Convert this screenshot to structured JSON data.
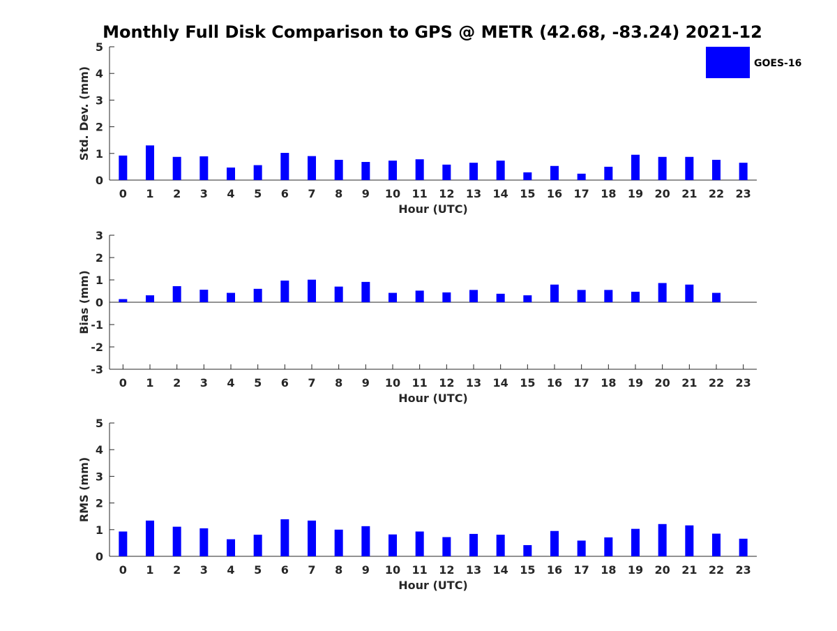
{
  "figure": {
    "title": "Monthly Full Disk Comparison to GPS @ METR (42.68, -83.24) 2021-12",
    "bar_color": "#0000ff",
    "legend": {
      "label": "GOES-16",
      "color": "#0000ff",
      "placement": "top-right"
    }
  },
  "chart_data": [
    {
      "type": "bar",
      "xlabel": "Hour (UTC)",
      "ylabel": "Std. Dev. (mm)",
      "ylim": [
        0,
        5
      ],
      "yticks": [
        0,
        1,
        2,
        3,
        4,
        5
      ],
      "categories": [
        "0",
        "1",
        "2",
        "3",
        "4",
        "5",
        "6",
        "7",
        "8",
        "9",
        "10",
        "11",
        "12",
        "13",
        "14",
        "15",
        "16",
        "17",
        "18",
        "19",
        "20",
        "21",
        "22",
        "23"
      ],
      "series": [
        {
          "name": "GOES-16",
          "values": [
            0.92,
            1.3,
            0.87,
            0.89,
            0.47,
            0.56,
            1.02,
            0.9,
            0.76,
            0.68,
            0.73,
            0.78,
            0.58,
            0.65,
            0.73,
            0.29,
            0.53,
            0.24,
            0.5,
            0.95,
            0.87,
            0.87,
            0.76,
            0.65
          ]
        }
      ]
    },
    {
      "type": "bar",
      "xlabel": "Hour (UTC)",
      "ylabel": "Bias (mm)",
      "ylim": [
        -3,
        3
      ],
      "yticks": [
        -3,
        -2,
        -1,
        0,
        1,
        2,
        3
      ],
      "categories": [
        "0",
        "1",
        "2",
        "3",
        "4",
        "5",
        "6",
        "7",
        "8",
        "9",
        "10",
        "11",
        "12",
        "13",
        "14",
        "15",
        "16",
        "17",
        "18",
        "19",
        "20",
        "21",
        "22",
        "23"
      ],
      "series": [
        {
          "name": "GOES-16",
          "values": [
            0.14,
            0.31,
            0.72,
            0.56,
            0.42,
            0.6,
            0.97,
            1.01,
            0.7,
            0.91,
            0.42,
            0.52,
            0.44,
            0.55,
            0.38,
            0.31,
            0.79,
            0.55,
            0.55,
            0.47,
            0.86,
            0.79,
            0.42,
            0.0
          ]
        }
      ]
    },
    {
      "type": "bar",
      "xlabel": "Hour (UTC)",
      "ylabel": "RMS (mm)",
      "ylim": [
        0,
        5
      ],
      "yticks": [
        0,
        1,
        2,
        3,
        4,
        5
      ],
      "categories": [
        "0",
        "1",
        "2",
        "3",
        "4",
        "5",
        "6",
        "7",
        "8",
        "9",
        "10",
        "11",
        "12",
        "13",
        "14",
        "15",
        "16",
        "17",
        "18",
        "19",
        "20",
        "21",
        "22",
        "23"
      ],
      "series": [
        {
          "name": "GOES-16",
          "values": [
            0.93,
            1.34,
            1.11,
            1.05,
            0.64,
            0.81,
            1.39,
            1.34,
            1.0,
            1.13,
            0.82,
            0.93,
            0.72,
            0.84,
            0.81,
            0.42,
            0.95,
            0.59,
            0.71,
            1.03,
            1.21,
            1.16,
            0.85,
            0.66
          ]
        }
      ]
    }
  ]
}
